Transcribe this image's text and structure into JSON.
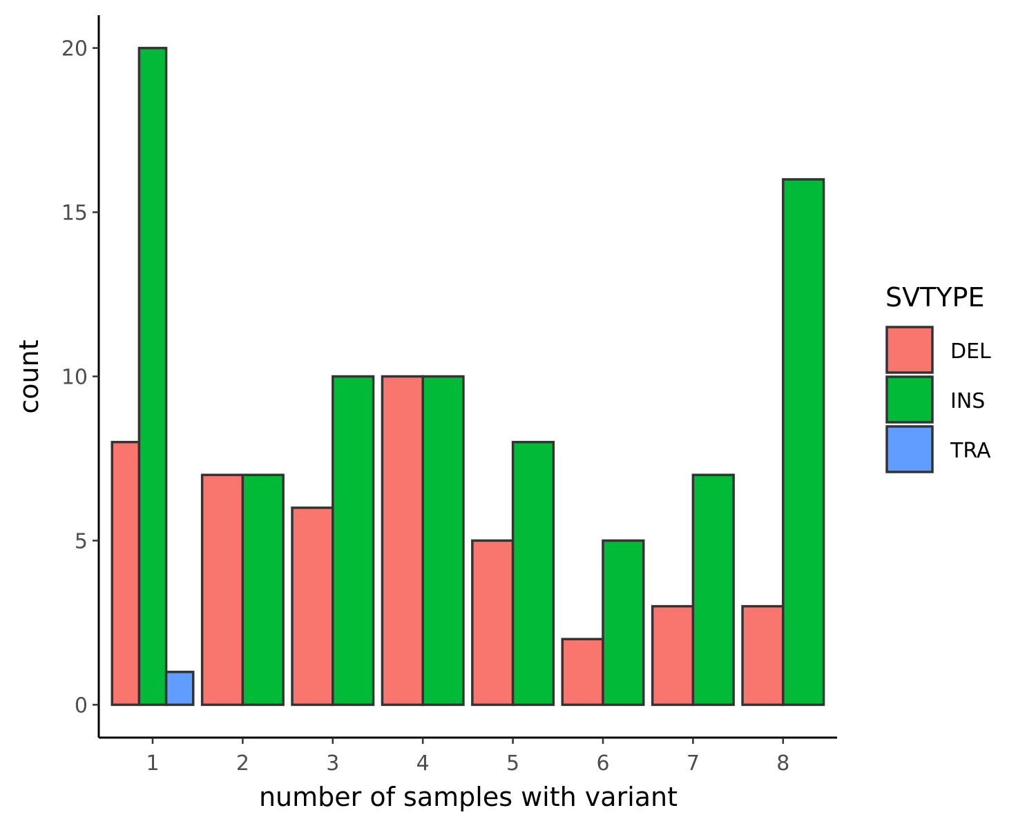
{
  "chart_data": {
    "type": "bar",
    "xlabel": "number of samples with variant",
    "ylabel": "count",
    "categories": [
      "1",
      "2",
      "3",
      "4",
      "5",
      "6",
      "7",
      "8"
    ],
    "yticks": [
      "0",
      "5",
      "10",
      "15",
      "20"
    ],
    "ylim": [
      -1,
      21
    ],
    "grid": false,
    "legend": {
      "title": "SVTYPE",
      "position": "right"
    },
    "series": [
      {
        "name": "DEL",
        "color": "#F8766D",
        "values": [
          8,
          7,
          6,
          10,
          5,
          2,
          3,
          3
        ]
      },
      {
        "name": "INS",
        "color": "#00BA38",
        "values": [
          20,
          7,
          10,
          10,
          8,
          5,
          7,
          16
        ]
      },
      {
        "name": "TRA",
        "color": "#619CFF",
        "values": [
          1,
          null,
          null,
          null,
          null,
          null,
          null,
          null
        ]
      }
    ]
  }
}
